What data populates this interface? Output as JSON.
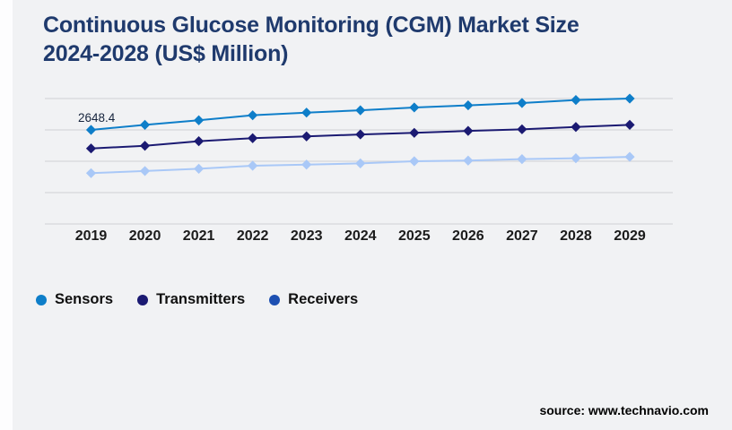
{
  "title": {
    "line1": "Continuous Glucose Monitoring (CGM) Market Size",
    "line2": "2024-2028 (US$ Million)"
  },
  "source_text": "source: www.technavio.com",
  "x_axis": {
    "labels": [
      "2019",
      "2020",
      "2021",
      "2022",
      "2023",
      "2024",
      "2025",
      "2026",
      "2027",
      "2028",
      "2029"
    ]
  },
  "legend": {
    "items": [
      {
        "label": "Sensors",
        "color": "#0e7ec9"
      },
      {
        "label": "Transmitters",
        "color": "#1b1a72"
      },
      {
        "label": "Receivers",
        "color": "#1d50b2"
      }
    ]
  },
  "colors": {
    "background": "#f1f2f4",
    "title": "#1f3a6d",
    "gridline": "#d6d7da",
    "data_label": "#16243d",
    "axis_label": "#1b1b1b"
  },
  "chart_data": {
    "type": "line",
    "title": "Continuous Glucose Monitoring (CGM) Market Size 2024-2028 (US$ Million)",
    "x": [
      2019,
      2020,
      2021,
      2022,
      2023,
      2024,
      2025,
      2026,
      2027,
      2028,
      2029
    ],
    "xlabel": "",
    "ylabel": "US$ Million",
    "ylim": [
      0,
      3531
    ],
    "gridline_count": 5,
    "grid": "horizontal",
    "marker": "diamond",
    "legend_position": "bottom-left",
    "series": [
      {
        "name": "Sensors",
        "color": "#0e7ec9",
        "values": [
          2648.4,
          2790,
          2920,
          3060,
          3135,
          3200,
          3280,
          3340,
          3405,
          3490,
          3530
        ]
      },
      {
        "name": "Transmitters",
        "color": "#1b1a72",
        "values": [
          2126,
          2200,
          2330,
          2415,
          2465,
          2520,
          2565,
          2620,
          2665,
          2730,
          2790
        ]
      },
      {
        "name": "Receivers",
        "color": "#a9c8f7",
        "legend_color": "#1d50b2",
        "values": [
          1430,
          1490,
          1555,
          1640,
          1670,
          1705,
          1765,
          1785,
          1825,
          1850,
          1890
        ]
      }
    ],
    "data_labels": [
      {
        "series": "Sensors",
        "x": 2019,
        "text": "2648.4"
      }
    ]
  }
}
